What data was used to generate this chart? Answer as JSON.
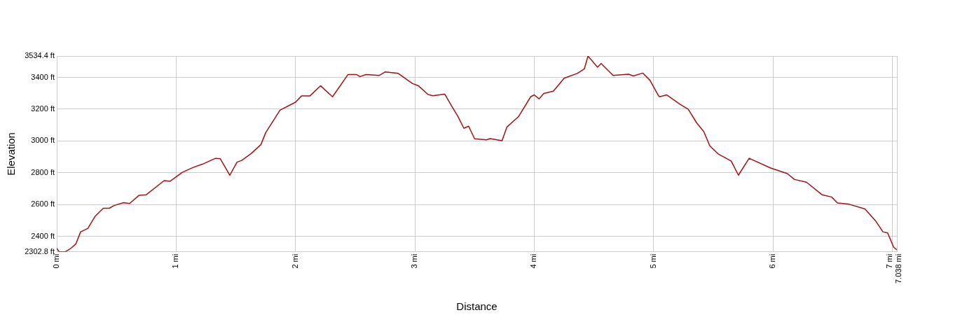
{
  "chart_data": {
    "type": "line",
    "xlabel": "Distance",
    "ylabel": "Elevation",
    "x": [
      0,
      0.02,
      0.07,
      0.12,
      0.16,
      0.2,
      0.26,
      0.32,
      0.39,
      0.44,
      0.48,
      0.56,
      0.61,
      0.69,
      0.75,
      0.9,
      0.95,
      1.05,
      1.14,
      1.22,
      1.33,
      1.37,
      1.45,
      1.51,
      1.55,
      1.63,
      1.71,
      1.75,
      1.87,
      2.0,
      2.05,
      2.12,
      2.21,
      2.31,
      2.44,
      2.51,
      2.54,
      2.59,
      2.7,
      2.75,
      2.86,
      2.98,
      3.03,
      3.11,
      3.15,
      3.25,
      3.31,
      3.36,
      3.41,
      3.45,
      3.5,
      3.6,
      3.63,
      3.73,
      3.77,
      3.87,
      3.97,
      4.0,
      4.04,
      4.08,
      4.16,
      4.25,
      4.36,
      4.42,
      4.45,
      4.53,
      4.56,
      4.66,
      4.79,
      4.83,
      4.91,
      4.97,
      5.04,
      5.05,
      5.11,
      5.22,
      5.29,
      5.36,
      5.42,
      5.47,
      5.54,
      5.65,
      5.71,
      5.8,
      5.98,
      6.12,
      6.18,
      6.28,
      6.41,
      6.49,
      6.54,
      6.63,
      6.77,
      6.86,
      6.92,
      6.96,
      7.01,
      7.038
    ],
    "series": [
      {
        "color": "#a50f0f",
        "values": [
          2326,
          2303,
          2303,
          2326,
          2353,
          2429,
          2450,
          2525,
          2577,
          2577,
          2594,
          2612,
          2607,
          2659,
          2662,
          2751,
          2747,
          2802,
          2833,
          2854,
          2891,
          2888,
          2785,
          2867,
          2878,
          2922,
          2977,
          3052,
          3194,
          3244,
          3283,
          3283,
          3347,
          3278,
          3418,
          3418,
          3405,
          3418,
          3412,
          3434,
          3425,
          3361,
          3347,
          3292,
          3285,
          3295,
          3217,
          3155,
          3080,
          3093,
          3014,
          3007,
          3015,
          3002,
          3087,
          3155,
          3278,
          3290,
          3265,
          3299,
          3313,
          3395,
          3425,
          3454,
          3534,
          3464,
          3487,
          3412,
          3420,
          3409,
          3427,
          3381,
          3285,
          3278,
          3290,
          3231,
          3199,
          3114,
          3059,
          2970,
          2919,
          2874,
          2785,
          2891,
          2830,
          2795,
          2758,
          2741,
          2662,
          2648,
          2610,
          2604,
          2573,
          2497,
          2429,
          2422,
          2333,
          2315
        ]
      }
    ],
    "xlim": [
      0,
      7.038
    ],
    "xticks": [
      {
        "value": 0,
        "label": "0 mi"
      },
      {
        "value": 1,
        "label": "1 mi"
      },
      {
        "value": 2,
        "label": "2 mi"
      },
      {
        "value": 3,
        "label": "3 mi"
      },
      {
        "value": 4,
        "label": "4 mi"
      },
      {
        "value": 5,
        "label": "5 mi"
      },
      {
        "value": 6,
        "label": "6 mi"
      },
      {
        "value": 7,
        "label": "7 mi"
      },
      {
        "value": 7.038,
        "label": "7.038 mi"
      }
    ],
    "ylim": [
      2302.8,
      3534.4
    ],
    "yticks": [
      {
        "value": 2302.8,
        "label": "2302.8 ft"
      },
      {
        "value": 2400,
        "label": "2400 ft"
      },
      {
        "value": 2600,
        "label": "2600 ft"
      },
      {
        "value": 2800,
        "label": "2800 ft"
      },
      {
        "value": 3000,
        "label": "3000 ft"
      },
      {
        "value": 3200,
        "label": "3200 ft"
      },
      {
        "value": 3400,
        "label": "3400 ft"
      },
      {
        "value": 3534.4,
        "label": "3534.4 ft"
      }
    ],
    "grid": true,
    "legend": false,
    "marker": "none",
    "line_style": "solid"
  }
}
